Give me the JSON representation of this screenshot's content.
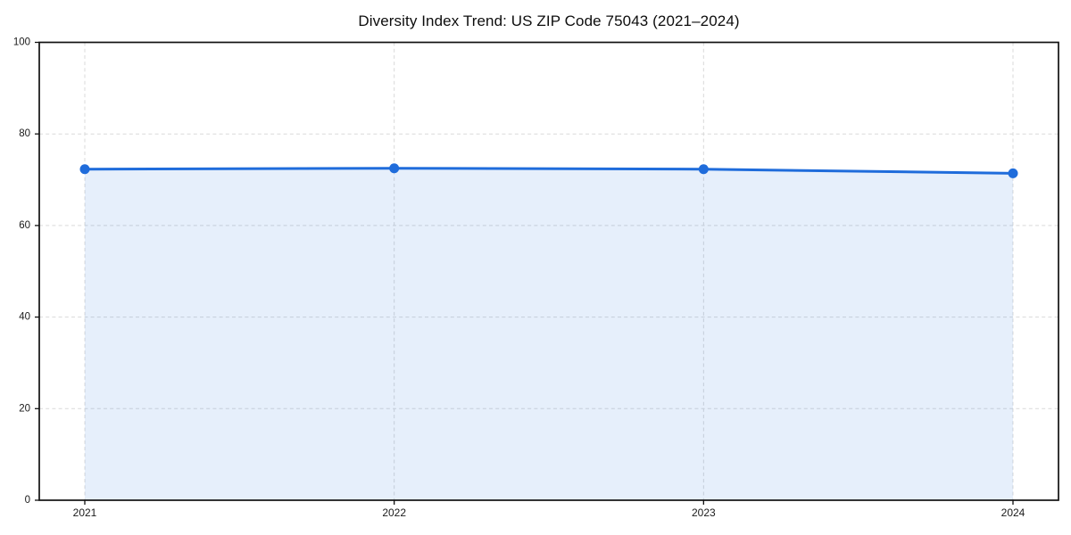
{
  "page": {
    "background_color": "#ffffff"
  },
  "chart_data": {
    "type": "area",
    "title": "Diversity Index Trend: US ZIP Code 75043 (2021–2024)",
    "x": [
      "2021",
      "2022",
      "2023",
      "2024"
    ],
    "series": [
      {
        "name": "Diversity Index",
        "values": [
          72.3,
          72.5,
          72.3,
          71.4
        ]
      }
    ],
    "xlabel": "",
    "ylabel": "",
    "ylim": [
      0,
      100
    ],
    "yticks": [
      0,
      20,
      40,
      60,
      80,
      100
    ],
    "grid": "on",
    "grid_style": "dashed",
    "legend_position": "none",
    "marker_shape": "circle",
    "colors": {
      "line": "#1f6cdb",
      "marker": "#1f6cdb",
      "fill": "#1f6cdb",
      "fill_opacity": "0.11",
      "grid": "#d9d9d9",
      "axis": "#111111",
      "tick_text": "#1a1a1a",
      "title_text": "#0d0d0d"
    }
  }
}
